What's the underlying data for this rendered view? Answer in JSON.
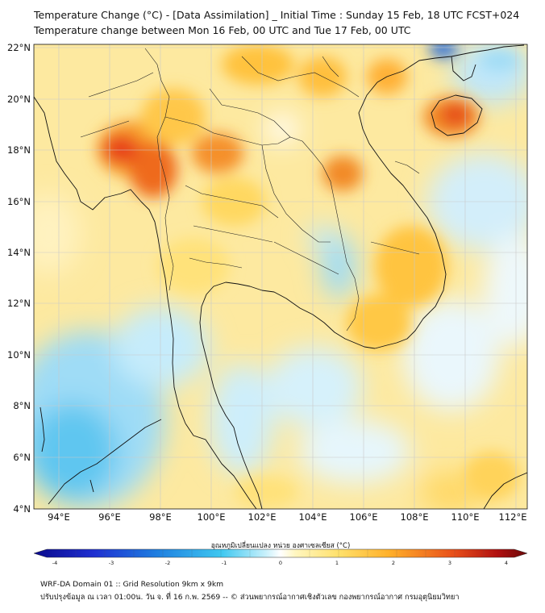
{
  "header": {
    "title_line1": "Temperature Change (°C) - [Data Assimilation] _ Initial Time : Sunday 15 Feb, 18 UTC FCST+024",
    "title_line2": "Temperature change between Mon 16 Feb, 00 UTC and Tue 17 Feb, 00 UTC"
  },
  "map": {
    "lat_labels": [
      "22°N",
      "20°N",
      "18°N",
      "16°N",
      "14°N",
      "12°N",
      "10°N",
      "8°N",
      "6°N",
      "4°N"
    ],
    "lon_labels": [
      "94°E",
      "96°E",
      "98°E",
      "100°E",
      "102°E",
      "104°E",
      "106°E",
      "108°E",
      "110°E",
      "112°E"
    ],
    "lat_range": [
      4,
      22
    ],
    "lon_range": [
      93,
      112.5
    ]
  },
  "colorbar": {
    "label": "อุณหภูมิเปลี่ยนแปลง หน่วย องศาเซลเซียส (°C)",
    "ticks": [
      "-4",
      "-3",
      "-2",
      "-1",
      "0",
      "1",
      "2",
      "3",
      "4"
    ],
    "range": [
      -4,
      4
    ]
  },
  "footer": {
    "line1": "WRF-DA Domain 01 :: Grid Resolution 9km x 9km",
    "line2": "ปรับปรุงข้อมูล ณ เวลา 01:00น. วัน จ. ที่ 16 ก.พ. 2569 -- © ส่วนพยากรณ์อากาศเชิงตัวเลข กองพยากรณ์อากาศ กรมอุตุนิยมวิทยา"
  },
  "colors": {
    "cold_extreme": "#0a0a8c",
    "cold": "#1e8fe0",
    "cool": "#bfe9fb",
    "neutral": "#ffffff",
    "warm": "#ffe27a",
    "hot": "#f08a1e",
    "hot_extreme": "#7a0a0a"
  }
}
